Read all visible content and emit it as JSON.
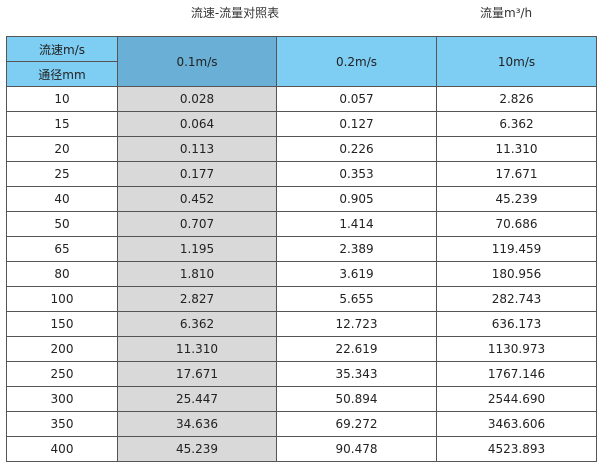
{
  "title": "流速-流量对照表",
  "unit_label": "流量m³/h",
  "header": {
    "velocity_label": "流速m/s",
    "diameter_label": "通径mm",
    "columns": [
      "0.1m/s",
      "0.2m/s",
      "10m/s"
    ]
  },
  "colors": {
    "header": "#7ecdf3",
    "header_highlight": "#6ab0d6",
    "highlight_column": "#d9d9d9"
  },
  "rows": [
    [
      "10",
      "0.028",
      "0.057",
      "2.826"
    ],
    [
      "15",
      "0.064",
      "0.127",
      "6.362"
    ],
    [
      "20",
      "0.113",
      "0.226",
      "11.310"
    ],
    [
      "25",
      "0.177",
      "0.353",
      "17.671"
    ],
    [
      "40",
      "0.452",
      "0.905",
      "45.239"
    ],
    [
      "50",
      "0.707",
      "1.414",
      "70.686"
    ],
    [
      "65",
      "1.195",
      "2.389",
      "119.459"
    ],
    [
      "80",
      "1.810",
      "3.619",
      "180.956"
    ],
    [
      "100",
      "2.827",
      "5.655",
      "282.743"
    ],
    [
      "150",
      "6.362",
      "12.723",
      "636.173"
    ],
    [
      "200",
      "11.310",
      "22.619",
      "1130.973"
    ],
    [
      "250",
      "17.671",
      "35.343",
      "1767.146"
    ],
    [
      "300",
      "25.447",
      "50.894",
      "2544.690"
    ],
    [
      "350",
      "34.636",
      "69.272",
      "3463.606"
    ],
    [
      "400",
      "45.239",
      "90.478",
      "4523.893"
    ]
  ]
}
